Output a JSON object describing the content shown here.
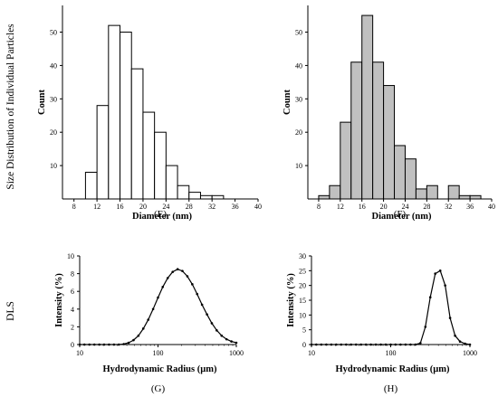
{
  "row_labels": {
    "top": "Size Distribution of Individual Particles",
    "bottom": "DLS"
  },
  "chart_data": [
    {
      "type": "bar",
      "panel_label": "(E)",
      "xlabel": "Diameter (nm)",
      "ylabel": "Count",
      "xlim": [
        6,
        40
      ],
      "ylim": [
        0,
        58
      ],
      "xticks": [
        "8",
        "12",
        "16",
        "20",
        "24",
        "28",
        "32",
        "36",
        "40"
      ],
      "yticks": [
        "10",
        "20",
        "30",
        "40",
        "50"
      ],
      "fill": "#ffffff",
      "bar_width": 2,
      "bins": [
        10,
        12,
        14,
        16,
        18,
        20,
        22,
        24,
        26,
        28,
        30,
        32
      ],
      "values": [
        8,
        28,
        52,
        50,
        39,
        26,
        20,
        10,
        4,
        2,
        1,
        1
      ]
    },
    {
      "type": "bar",
      "panel_label": "(F)",
      "xlabel": "Diameter (nm)",
      "ylabel": "Count",
      "xlim": [
        6,
        40
      ],
      "ylim": [
        0,
        58
      ],
      "xticks": [
        "8",
        "12",
        "16",
        "20",
        "24",
        "28",
        "32",
        "36",
        "40"
      ],
      "yticks": [
        "10",
        "20",
        "30",
        "40",
        "50"
      ],
      "fill": "#c0c0c0",
      "bar_width": 2,
      "bins": [
        8,
        10,
        12,
        14,
        16,
        18,
        20,
        22,
        24,
        26,
        28,
        30,
        32,
        34,
        36
      ],
      "values": [
        1,
        4,
        23,
        41,
        55,
        41,
        34,
        16,
        12,
        3,
        4,
        0,
        4,
        1,
        1
      ]
    },
    {
      "type": "line",
      "panel_label": "(G)",
      "xlabel": "Hydrodynamic Radius (µm)",
      "ylabel": "Intensity (%)",
      "xscale": "log",
      "xlim": [
        10,
        1000
      ],
      "ylim": [
        0,
        10
      ],
      "xticks": [
        "10",
        "100",
        "1000"
      ],
      "yticks": [
        "0",
        "2",
        "4",
        "6",
        "8",
        "10"
      ],
      "x": [
        10,
        11.5,
        13.3,
        15.4,
        17.8,
        20.5,
        23.7,
        27.4,
        31.6,
        36.5,
        42.2,
        48.7,
        56.2,
        64.9,
        75.0,
        86.6,
        100,
        115,
        133,
        154,
        178,
        205,
        237,
        274,
        316,
        365,
        422,
        487,
        562,
        649,
        750,
        866,
        1000
      ],
      "y": [
        0,
        0,
        0,
        0,
        0,
        0,
        0,
        0,
        0,
        0.05,
        0.2,
        0.5,
        1.0,
        1.8,
        2.8,
        4.0,
        5.3,
        6.5,
        7.5,
        8.2,
        8.5,
        8.3,
        7.7,
        6.8,
        5.7,
        4.5,
        3.4,
        2.4,
        1.6,
        1.0,
        0.6,
        0.35,
        0.2
      ]
    },
    {
      "type": "line",
      "panel_label": "(H)",
      "xlabel": "Hydrodynamic Radius (µm)",
      "ylabel": "Intensity (%)",
      "xscale": "log",
      "xlim": [
        10,
        1000
      ],
      "ylim": [
        0,
        30
      ],
      "xticks": [
        "10",
        "100",
        "1000"
      ],
      "yticks": [
        "0",
        "5",
        "10",
        "15",
        "20",
        "25",
        "30"
      ],
      "x": [
        10,
        11.5,
        13.3,
        15.4,
        17.8,
        20.5,
        23.7,
        27.4,
        31.6,
        36.5,
        42.2,
        48.7,
        56.2,
        64.9,
        75.0,
        86.6,
        100,
        115,
        133,
        154,
        178,
        205,
        237,
        274,
        316,
        365,
        422,
        487,
        562,
        649,
        750,
        866,
        1000
      ],
      "y": [
        0,
        0,
        0,
        0,
        0,
        0,
        0,
        0,
        0,
        0,
        0,
        0,
        0,
        0,
        0,
        0,
        0,
        0,
        0,
        0,
        0,
        0,
        0.5,
        6,
        16,
        24,
        25,
        20,
        9,
        3,
        1,
        0.3,
        0
      ]
    }
  ]
}
